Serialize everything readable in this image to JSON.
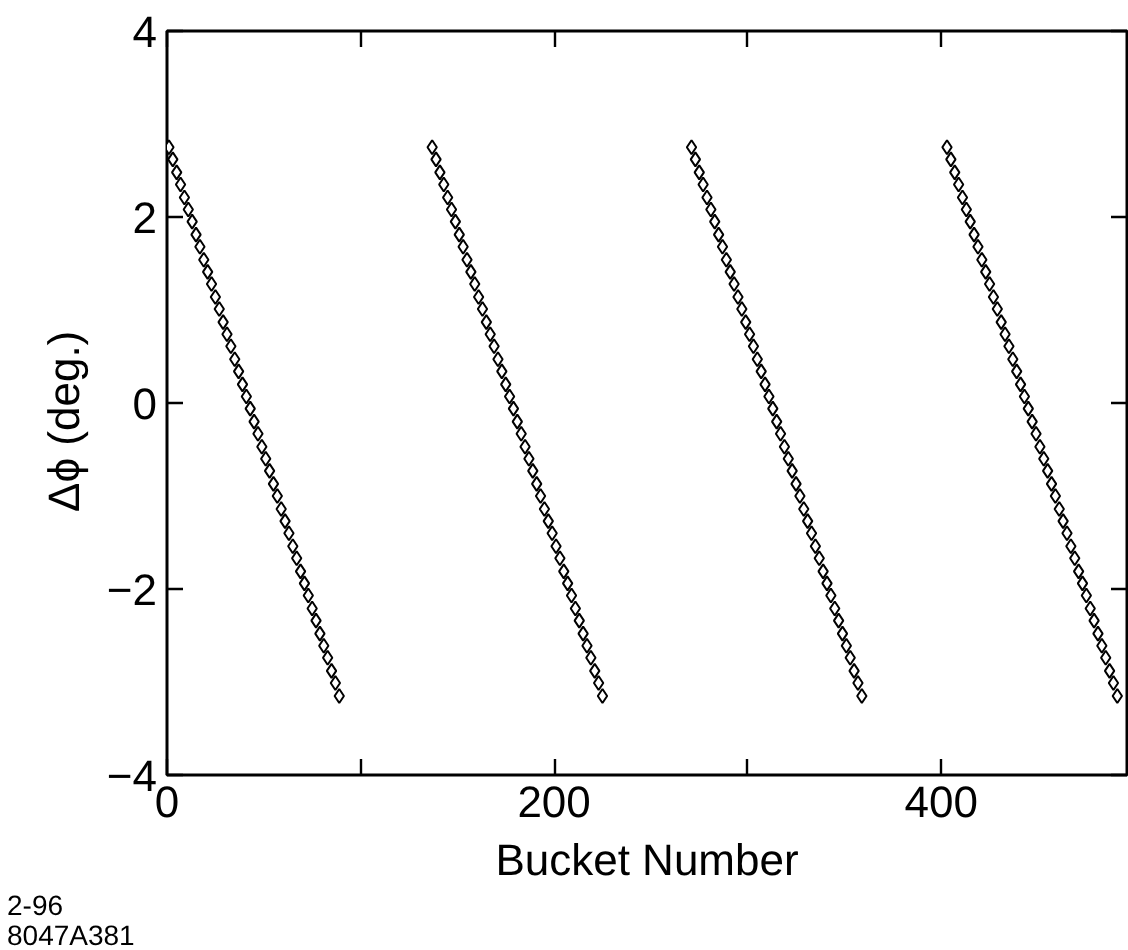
{
  "chart_data": {
    "type": "scatter",
    "xlabel": "Bucket Number",
    "ylabel": "Δϕ    (deg.)",
    "annotations": [
      "2-96",
      "8047A381"
    ],
    "xlim": [
      0,
      496
    ],
    "ylim": [
      -4,
      4
    ],
    "xticks": [
      0,
      {
        "value": 100,
        "label": null
      },
      200,
      {
        "value": 300,
        "label": null
      },
      400
    ],
    "yticks": [
      {
        "value": -4,
        "label": "−4"
      },
      {
        "value": -2,
        "label": "−2"
      },
      0,
      2,
      4
    ],
    "marker": "diamond",
    "series": [
      {
        "color": "#000000",
        "x": [
          1,
          3,
          5,
          7,
          9,
          11,
          13,
          15,
          17,
          19,
          21,
          23,
          25,
          27,
          29,
          31,
          33,
          35,
          37,
          39,
          41,
          43,
          45,
          47,
          49,
          51,
          53,
          55,
          57,
          59,
          61,
          63,
          65,
          67,
          69,
          71,
          73,
          75,
          77,
          79,
          81,
          83,
          85,
          87,
          89
        ],
        "values": [
          2.75,
          2.62,
          2.48,
          2.35,
          2.21,
          2.08,
          1.95,
          1.81,
          1.68,
          1.54,
          1.41,
          1.28,
          1.14,
          1.01,
          0.87,
          0.74,
          0.61,
          0.47,
          0.34,
          0.2,
          0.07,
          -0.06,
          -0.2,
          -0.33,
          -0.47,
          -0.6,
          -0.73,
          -0.87,
          -1.0,
          -1.14,
          -1.27,
          -1.4,
          -1.54,
          -1.67,
          -1.81,
          -1.94,
          -2.07,
          -2.21,
          -2.34,
          -2.48,
          -2.61,
          -2.74,
          -2.88,
          -3.01,
          -3.15
        ]
      },
      {
        "color": "#000000",
        "x": [
          137,
          139,
          141,
          143,
          145,
          147,
          149,
          151,
          153,
          155,
          157,
          159,
          161,
          163,
          165,
          167,
          169,
          171,
          173,
          175,
          177,
          179,
          181,
          183,
          185,
          187,
          189,
          191,
          193,
          195,
          197,
          199,
          201,
          203,
          205,
          207,
          209,
          211,
          213,
          215,
          217,
          219,
          221,
          223,
          225
        ],
        "values": [
          2.75,
          2.62,
          2.48,
          2.35,
          2.21,
          2.08,
          1.95,
          1.81,
          1.68,
          1.54,
          1.41,
          1.28,
          1.14,
          1.01,
          0.87,
          0.74,
          0.61,
          0.47,
          0.34,
          0.2,
          0.07,
          -0.06,
          -0.2,
          -0.33,
          -0.47,
          -0.6,
          -0.73,
          -0.87,
          -1.0,
          -1.14,
          -1.27,
          -1.4,
          -1.54,
          -1.67,
          -1.81,
          -1.94,
          -2.07,
          -2.21,
          -2.34,
          -2.48,
          -2.61,
          -2.74,
          -2.88,
          -3.01,
          -3.15
        ]
      },
      {
        "color": "#000000",
        "x": [
          271,
          273,
          275,
          277,
          279,
          281,
          283,
          285,
          287,
          289,
          291,
          293,
          295,
          297,
          299,
          301,
          303,
          305,
          307,
          309,
          311,
          313,
          315,
          317,
          319,
          321,
          323,
          325,
          327,
          329,
          331,
          333,
          335,
          337,
          339,
          341,
          343,
          345,
          347,
          349,
          351,
          353,
          355,
          357,
          359
        ],
        "values": [
          2.75,
          2.62,
          2.48,
          2.35,
          2.21,
          2.08,
          1.95,
          1.81,
          1.68,
          1.54,
          1.41,
          1.28,
          1.14,
          1.01,
          0.87,
          0.74,
          0.61,
          0.47,
          0.34,
          0.2,
          0.07,
          -0.06,
          -0.2,
          -0.33,
          -0.47,
          -0.6,
          -0.73,
          -0.87,
          -1.0,
          -1.14,
          -1.27,
          -1.4,
          -1.54,
          -1.67,
          -1.81,
          -1.94,
          -2.07,
          -2.21,
          -2.34,
          -2.48,
          -2.61,
          -2.74,
          -2.88,
          -3.01,
          -3.15
        ]
      },
      {
        "color": "#000000",
        "x": [
          403,
          405,
          407,
          409,
          411,
          413,
          415,
          417,
          419,
          421,
          423,
          425,
          427,
          429,
          431,
          433,
          435,
          437,
          439,
          441,
          443,
          445,
          447,
          449,
          451,
          453,
          455,
          457,
          459,
          461,
          463,
          465,
          467,
          469,
          471,
          473,
          475,
          477,
          479,
          481,
          483,
          485,
          487,
          489,
          491
        ],
        "values": [
          2.75,
          2.62,
          2.48,
          2.35,
          2.21,
          2.08,
          1.95,
          1.81,
          1.68,
          1.54,
          1.41,
          1.28,
          1.14,
          1.01,
          0.87,
          0.74,
          0.61,
          0.47,
          0.34,
          0.2,
          0.07,
          -0.06,
          -0.2,
          -0.33,
          -0.47,
          -0.6,
          -0.73,
          -0.87,
          -1.0,
          -1.14,
          -1.27,
          -1.4,
          -1.54,
          -1.67,
          -1.81,
          -1.94,
          -2.07,
          -2.21,
          -2.34,
          -2.48,
          -2.61,
          -2.74,
          -2.88,
          -3.01,
          -3.15
        ]
      }
    ]
  }
}
